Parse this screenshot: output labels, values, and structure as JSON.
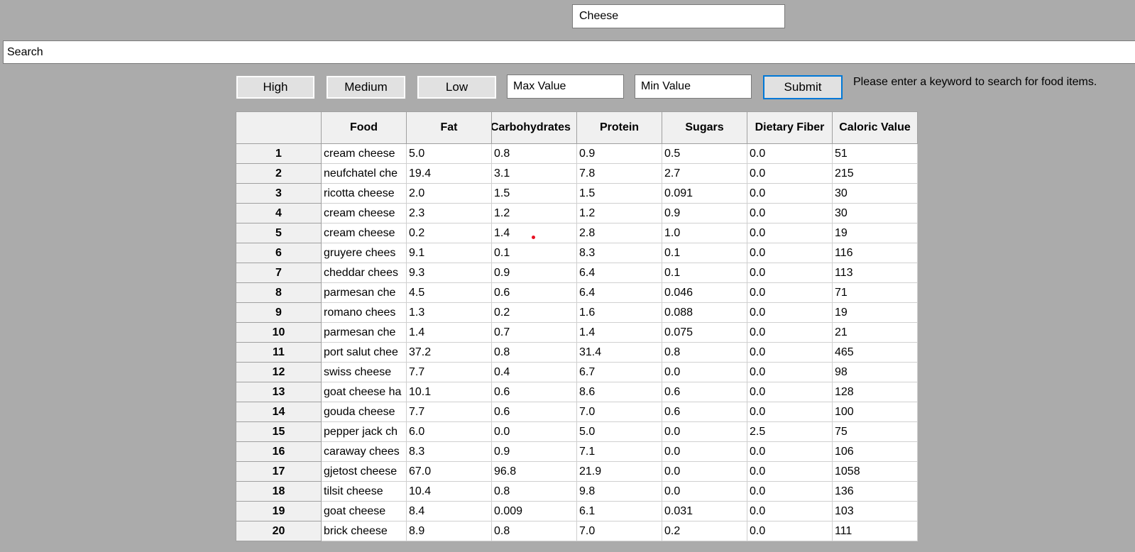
{
  "keyword_field": {
    "value": "Cheese"
  },
  "search_field": {
    "value": "Search"
  },
  "buttons": {
    "high": "High",
    "medium": "Medium",
    "low": "Low",
    "submit": "Submit"
  },
  "max_field": {
    "value": "Max Value"
  },
  "min_field": {
    "value": "Min Value"
  },
  "hint_text": "Please enter a keyword to search for food items.",
  "colors": {
    "background": "#ababab",
    "submit_focus_border": "#0078d7",
    "cursor_dot": "#e81123"
  },
  "table": {
    "headers": [
      "",
      "Food",
      "Fat",
      "Carbohydrates",
      "Protein",
      "Sugars",
      "Dietary Fiber",
      "Caloric Value"
    ],
    "rows": [
      [
        "1",
        "cream cheese",
        "5.0",
        "0.8",
        "0.9",
        "0.5",
        "0.0",
        "51"
      ],
      [
        "2",
        "neufchatel che",
        "19.4",
        "3.1",
        "7.8",
        "2.7",
        "0.0",
        "215"
      ],
      [
        "3",
        "ricotta cheese",
        "2.0",
        "1.5",
        "1.5",
        "0.091",
        "0.0",
        "30"
      ],
      [
        "4",
        "cream cheese",
        "2.3",
        "1.2",
        "1.2",
        "0.9",
        "0.0",
        "30"
      ],
      [
        "5",
        "cream cheese",
        "0.2",
        "1.4",
        "2.8",
        "1.0",
        "0.0",
        "19"
      ],
      [
        "6",
        "gruyere chees",
        "9.1",
        "0.1",
        "8.3",
        "0.1",
        "0.0",
        "116"
      ],
      [
        "7",
        "cheddar chees",
        "9.3",
        "0.9",
        "6.4",
        "0.1",
        "0.0",
        "113"
      ],
      [
        "8",
        "parmesan che",
        "4.5",
        "0.6",
        "6.4",
        "0.046",
        "0.0",
        "71"
      ],
      [
        "9",
        "romano chees",
        "1.3",
        "0.2",
        "1.6",
        "0.088",
        "0.0",
        "19"
      ],
      [
        "10",
        "parmesan che",
        "1.4",
        "0.7",
        "1.4",
        "0.075",
        "0.0",
        "21"
      ],
      [
        "11",
        "port salut chee",
        "37.2",
        "0.8",
        "31.4",
        "0.8",
        "0.0",
        "465"
      ],
      [
        "12",
        "swiss cheese",
        "7.7",
        "0.4",
        "6.7",
        "0.0",
        "0.0",
        "98"
      ],
      [
        "13",
        "goat cheese ha",
        "10.1",
        "0.6",
        "8.6",
        "0.6",
        "0.0",
        "128"
      ],
      [
        "14",
        "gouda cheese",
        "7.7",
        "0.6",
        "7.0",
        "0.6",
        "0.0",
        "100"
      ],
      [
        "15",
        "pepper jack ch",
        "6.0",
        "0.0",
        "5.0",
        "0.0",
        "2.5",
        "75"
      ],
      [
        "16",
        "caraway chees",
        "8.3",
        "0.9",
        "7.1",
        "0.0",
        "0.0",
        "106"
      ],
      [
        "17",
        "gjetost cheese",
        "67.0",
        "96.8",
        "21.9",
        "0.0",
        "0.0",
        "1058"
      ],
      [
        "18",
        "tilsit cheese",
        "10.4",
        "0.8",
        "9.8",
        "0.0",
        "0.0",
        "136"
      ],
      [
        "19",
        "goat cheese",
        "8.4",
        "0.009",
        "6.1",
        "0.031",
        "0.0",
        "103"
      ],
      [
        "20",
        "brick cheese",
        "8.9",
        "0.8",
        "7.0",
        "0.2",
        "0.0",
        "111"
      ]
    ]
  }
}
